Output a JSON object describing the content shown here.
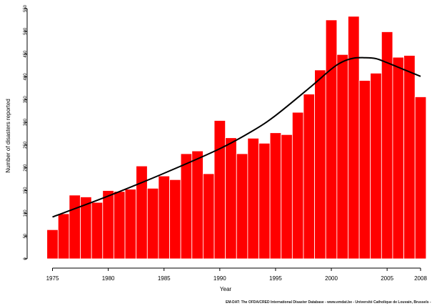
{
  "chart_data": {
    "type": "bar",
    "title": "",
    "xlabel": "Year",
    "ylabel": "Number of disasters reported",
    "ylim": [
      0,
      550
    ],
    "yticks": [
      0,
      50,
      100,
      150,
      200,
      250,
      300,
      350,
      400,
      450,
      500,
      550
    ],
    "xticks": [
      "1975",
      "1980",
      "1985",
      "1990",
      "1995",
      "2000",
      "2005",
      "2008"
    ],
    "categories": [
      "1975",
      "1976",
      "1977",
      "1978",
      "1979",
      "1980",
      "1981",
      "1982",
      "1983",
      "1984",
      "1985",
      "1986",
      "1987",
      "1988",
      "1989",
      "1990",
      "1991",
      "1992",
      "1993",
      "1994",
      "1995",
      "1996",
      "1997",
      "1998",
      "1999",
      "2000",
      "2001",
      "2002",
      "2003",
      "2004",
      "2005",
      "2006",
      "2007",
      "2008"
    ],
    "values": [
      64,
      99,
      140,
      136,
      124,
      150,
      148,
      153,
      204,
      155,
      182,
      174,
      231,
      237,
      187,
      304,
      266,
      231,
      265,
      254,
      277,
      273,
      322,
      362,
      415,
      525,
      449,
      533,
      392,
      408,
      499,
      443,
      447,
      356
    ],
    "bar_color": "#ff0000",
    "trend": {
      "years": [
        1975,
        1980,
        1985,
        1990,
        1993,
        1995,
        1998,
        2000,
        2001,
        2002,
        2003,
        2004,
        2005,
        2006,
        2007,
        2008
      ],
      "values": [
        92,
        138,
        188,
        242,
        282,
        315,
        375,
        417,
        433,
        441,
        442,
        440,
        431,
        421,
        411,
        401
      ]
    },
    "source": "EM-DAT: The OFDA/CRED International Disaster Database - www.emdat.be - Université Catholique de Louvain, Brussels - Belgium"
  }
}
